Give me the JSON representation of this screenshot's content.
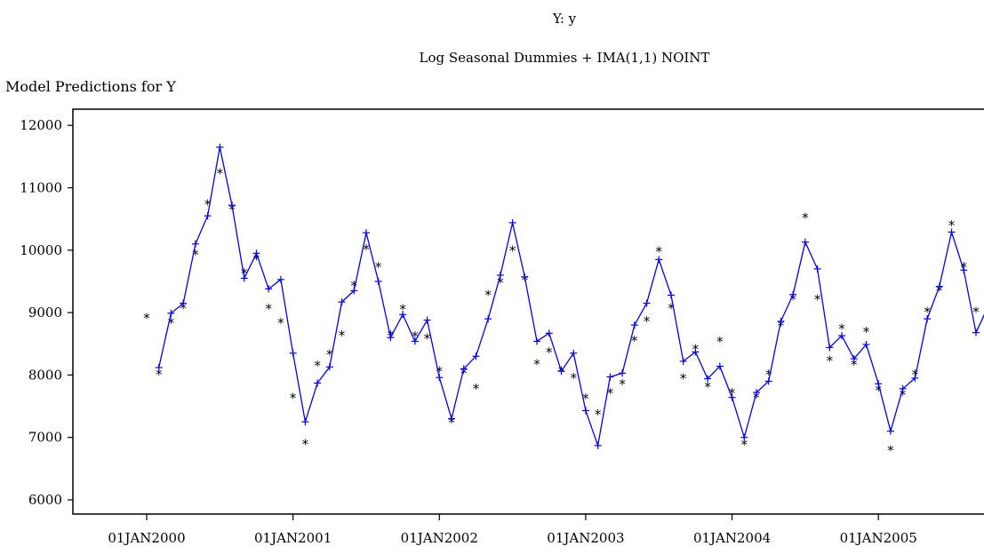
{
  "header": {
    "title_line1": "Y: y",
    "title_line2": "Log Seasonal Dummies + IMA(1,1) NOINT"
  },
  "chart_data": {
    "type": "line",
    "title": "Log Seasonal Dummies + IMA(1,1) NOINT",
    "ylabel": "Model Predictions for Y",
    "ylim": [
      5800,
      12200
    ],
    "yticks": [
      6000,
      7000,
      8000,
      9000,
      10000,
      11000,
      12000
    ],
    "xticks": [
      "01JAN2000",
      "01JAN2001",
      "01JAN2002",
      "01JAN2003",
      "01JAN2004",
      "01JAN2005",
      "01JAN2006"
    ],
    "x_start": "2000-01",
    "colors": {
      "predicted": "#0000ff",
      "actual": "#000000"
    },
    "series": [
      {
        "marker": "+",
        "values": [
          null,
          8120,
          8990,
          9150,
          10100,
          10550,
          11650,
          10720,
          9550,
          9950,
          9380,
          9530,
          8350,
          7250,
          7870,
          8130,
          9170,
          9350,
          10280,
          9500,
          8600,
          8970,
          8540,
          8880,
          7960,
          7300,
          8100,
          8300,
          8900,
          9600,
          10440,
          9570,
          8540,
          8670,
          8060,
          8350,
          7430,
          6870,
          7970,
          8030,
          8800,
          9150,
          9850,
          9280,
          8220,
          8370,
          7940,
          8140,
          7640,
          7000,
          7720,
          7900,
          8860,
          9290,
          10130,
          9700,
          8440,
          8630,
          8260,
          8490,
          7860,
          7100,
          7780,
          7950,
          8900,
          9420,
          10290,
          9680,
          8680,
          9100
        ]
      },
      {
        "marker": "*",
        "values": [
          8980,
          8080,
          8900,
          9140,
          10000,
          10800,
          11300,
          10720,
          9700,
          9920,
          9130,
          8900,
          7700,
          6960,
          8220,
          8400,
          8700,
          9500,
          10080,
          9800,
          8700,
          9120,
          8690,
          8650,
          8130,
          7310,
          8100,
          7850,
          9350,
          9550,
          10060,
          9590,
          8240,
          8430,
          8130,
          8020,
          7690,
          7440,
          7780,
          7920,
          8620,
          8930,
          10050,
          9140,
          8010,
          8480,
          7880,
          8600,
          7780,
          6950,
          7710,
          8080,
          8860,
          9280,
          10590,
          9280,
          8300,
          8810,
          8230,
          8760,
          7820,
          6860,
          7750,
          8080,
          9080,
          9420,
          10470,
          9800,
          9080,
          9080
        ]
      }
    ]
  }
}
